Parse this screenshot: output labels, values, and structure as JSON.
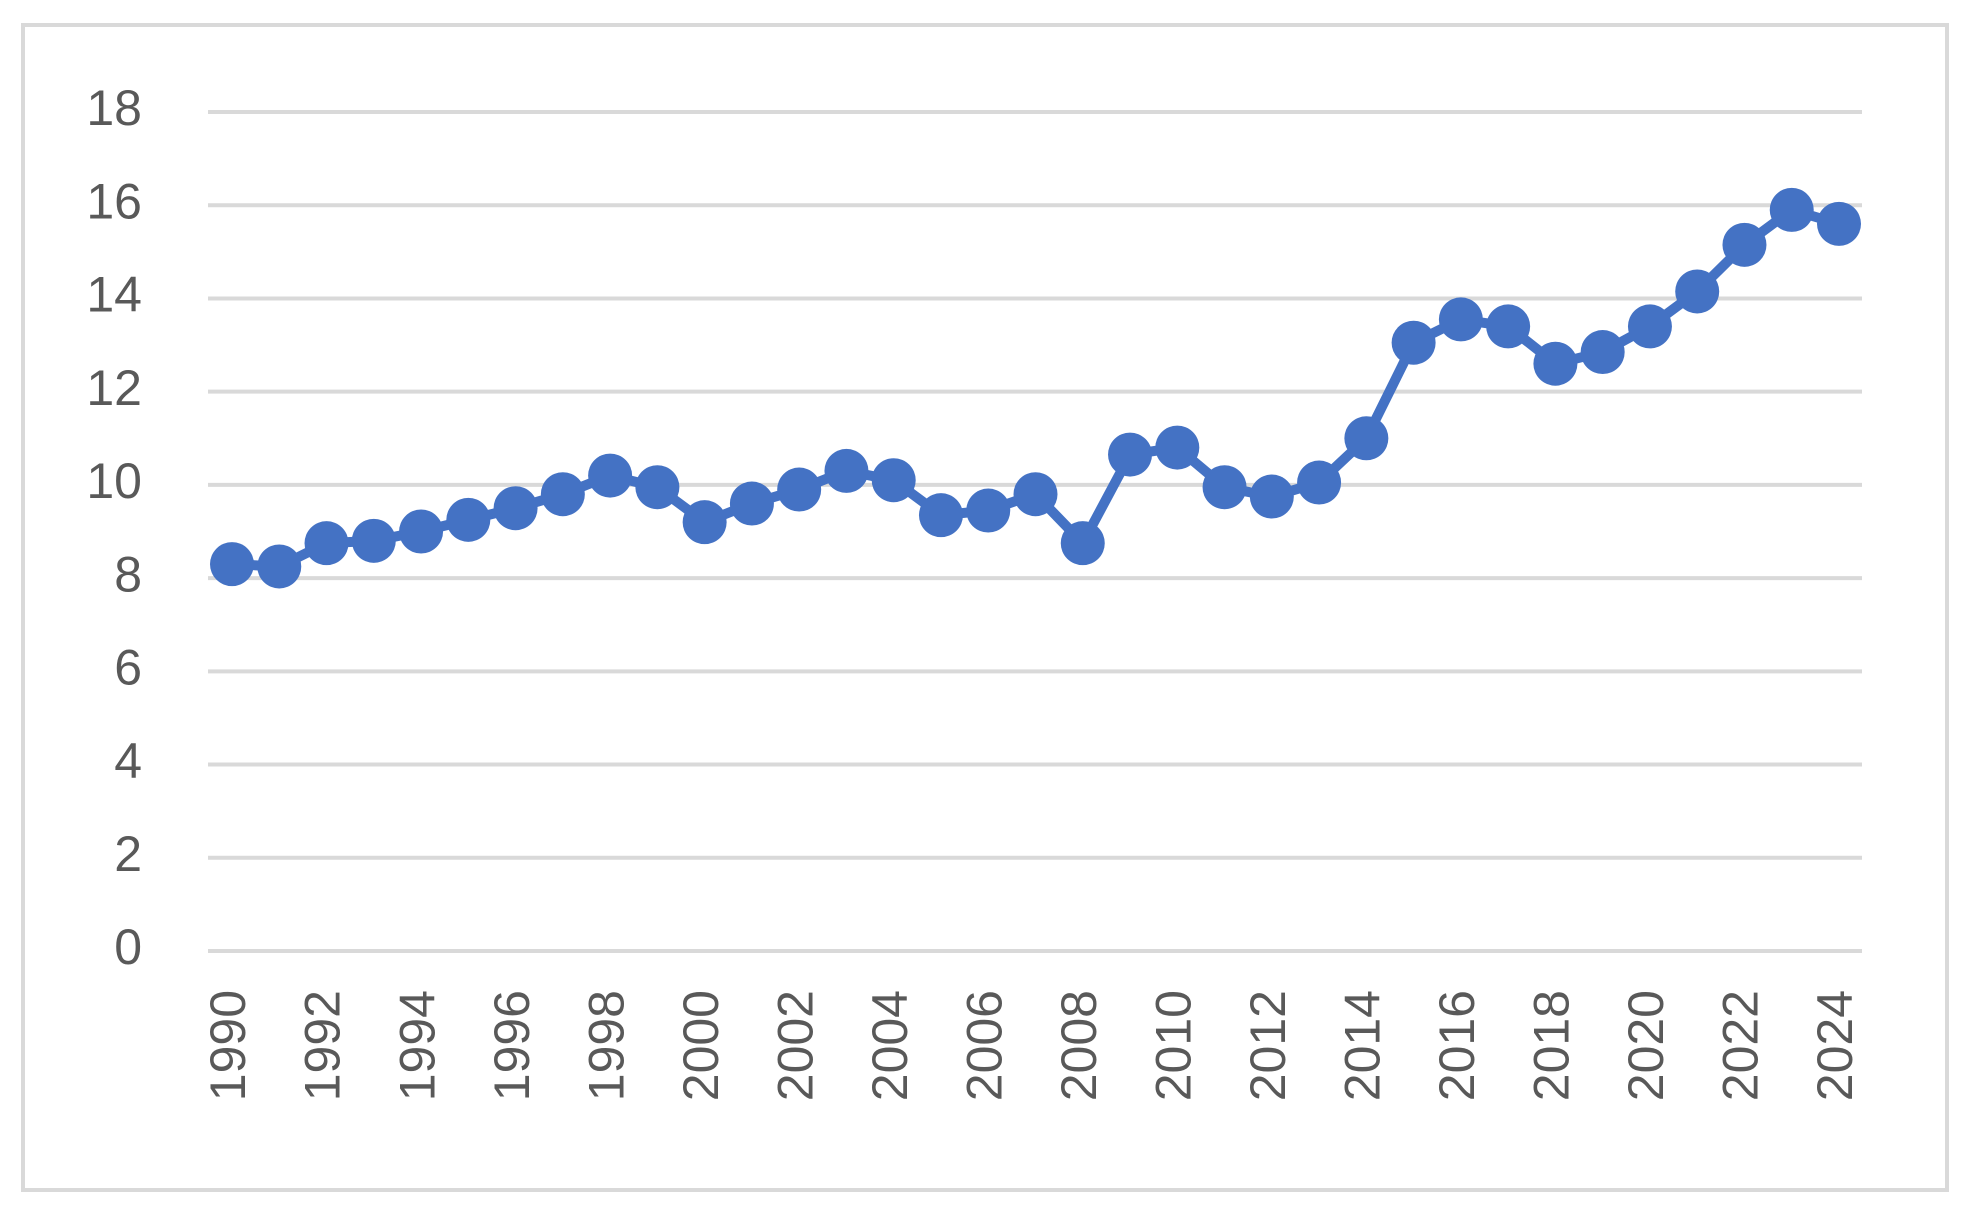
{
  "chart_data": {
    "type": "line",
    "categories": [
      "1990",
      null,
      "1992",
      null,
      "1994",
      null,
      "1996",
      null,
      "1998",
      null,
      "2000",
      null,
      "2002",
      null,
      "2004",
      null,
      "2006",
      null,
      "2008",
      null,
      "2010",
      null,
      "2012",
      null,
      "2014",
      null,
      "2016",
      null,
      "2018",
      null,
      "2020",
      null,
      "2022",
      null,
      "2024"
    ],
    "series": [
      {
        "color": "#4472c4",
        "values": [
          8.3,
          8.25,
          8.75,
          8.8,
          9.0,
          9.25,
          9.5,
          9.8,
          10.2,
          9.95,
          9.2,
          9.6,
          9.9,
          10.3,
          10.1,
          9.35,
          9.45,
          9.8,
          8.75,
          10.65,
          10.8,
          9.95,
          9.75,
          10.05,
          11.0,
          13.05,
          13.55,
          13.4,
          12.6,
          12.85,
          13.4,
          14.15,
          15.15,
          15.9,
          15.6
        ]
      }
    ],
    "ylim": [
      0,
      18
    ],
    "yticks": [
      0,
      2,
      4,
      6,
      8,
      10,
      12,
      14,
      16,
      18
    ],
    "grid": true
  }
}
